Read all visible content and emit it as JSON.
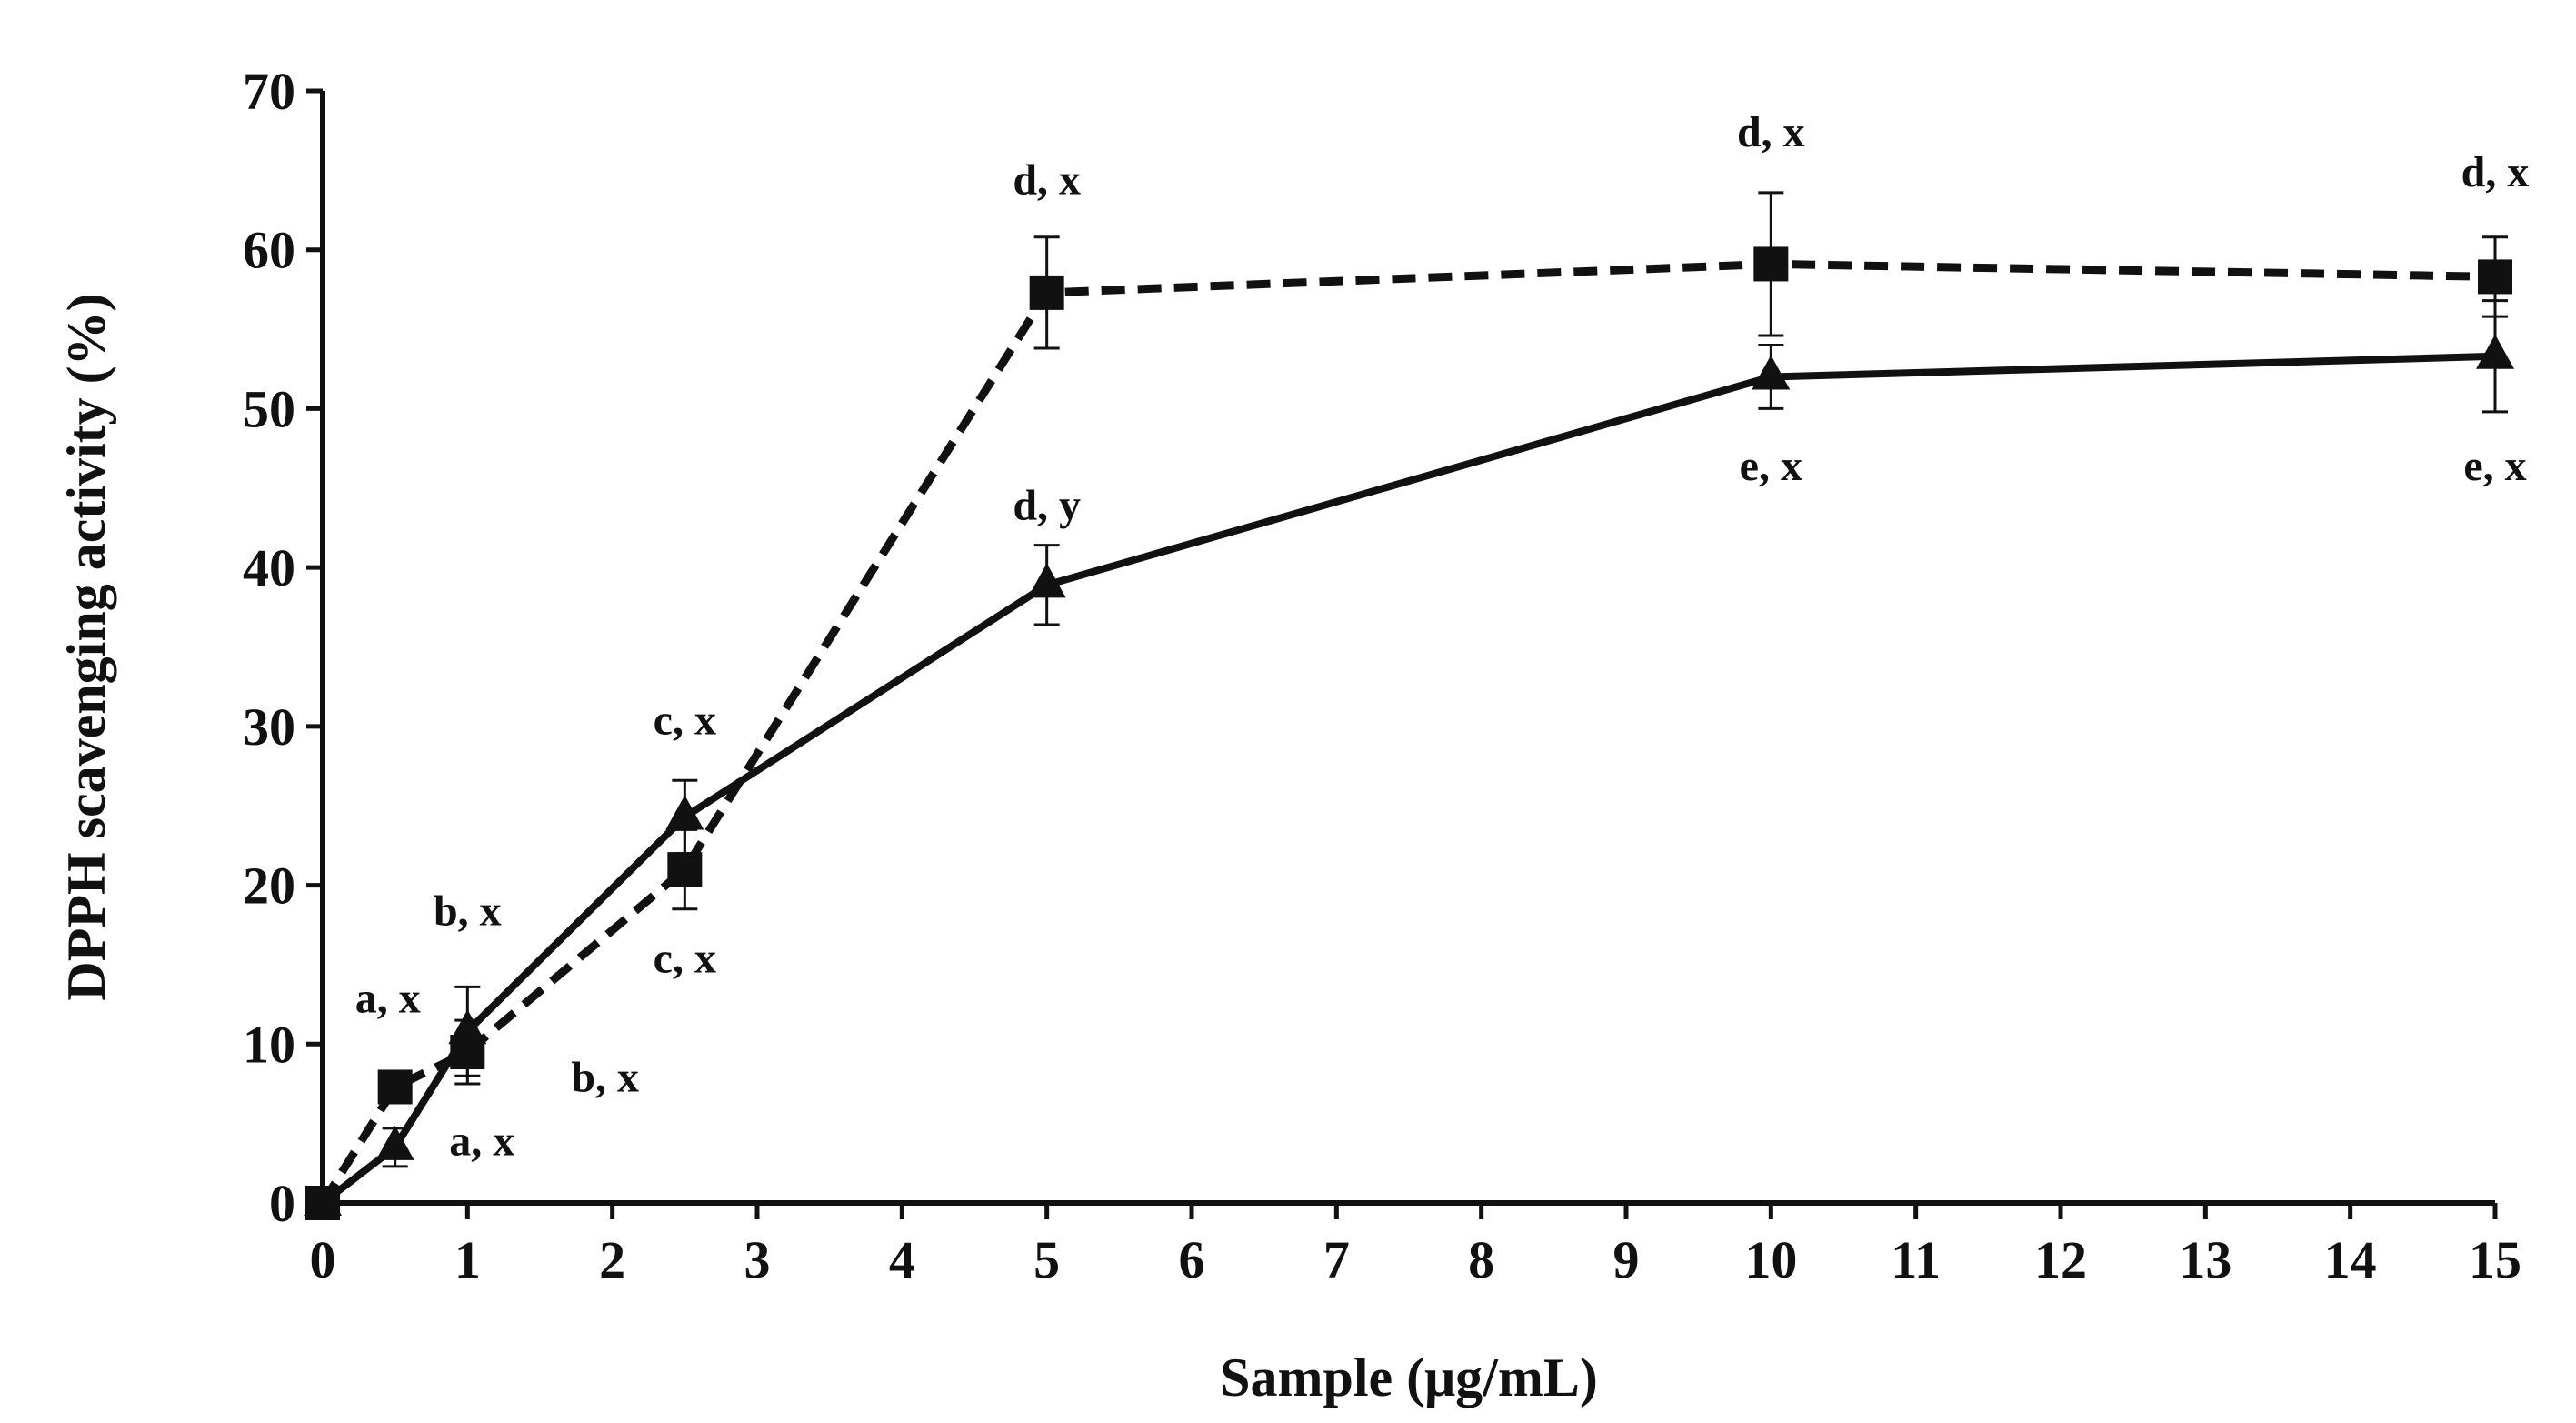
{
  "chart_data": {
    "type": "line",
    "title": "",
    "xlabel": "Sample (μg/mL)",
    "ylabel": "DPPH scavenging activity (%)",
    "xlim": [
      0,
      15
    ],
    "ylim": [
      0,
      70
    ],
    "xticks": [
      0,
      1,
      2,
      3,
      4,
      5,
      6,
      7,
      8,
      9,
      10,
      11,
      12,
      13,
      14,
      15
    ],
    "yticks": [
      0,
      10,
      20,
      30,
      40,
      50,
      60,
      70
    ],
    "grid": false,
    "legend": "none",
    "series": [
      {
        "name": "square-dashed",
        "marker": "square",
        "line": "dashed",
        "x": [
          0,
          0.5,
          1,
          2.5,
          5,
          10,
          15
        ],
        "values": [
          0,
          7.3,
          9.5,
          21.0,
          57.3,
          59.1,
          58.3
        ],
        "errors": [
          0,
          1.0,
          2.0,
          2.5,
          3.5,
          4.5,
          2.5
        ]
      },
      {
        "name": "triangle-solid",
        "marker": "triangle",
        "line": "solid",
        "x": [
          0,
          0.5,
          1,
          2.5,
          5,
          10,
          15
        ],
        "values": [
          0,
          3.5,
          10.8,
          24.3,
          38.9,
          52.0,
          53.3
        ],
        "errors": [
          0,
          1.2,
          2.8,
          2.3,
          2.5,
          2.0,
          3.5
        ]
      }
    ],
    "annotations": [
      {
        "text": "a, x",
        "x": 0.45,
        "y": 12.0
      },
      {
        "text": "a, x",
        "x": 1.1,
        "y": 3.0
      },
      {
        "text": "b, x",
        "x": 1.0,
        "y": 17.5
      },
      {
        "text": "b, x",
        "x": 1.95,
        "y": 7.0
      },
      {
        "text": "c, x",
        "x": 2.5,
        "y": 29.5
      },
      {
        "text": "c, x",
        "x": 2.5,
        "y": 14.5
      },
      {
        "text": "d, x",
        "x": 5.0,
        "y": 63.5
      },
      {
        "text": "d, y",
        "x": 5.0,
        "y": 43.0
      },
      {
        "text": "d, x",
        "x": 10.0,
        "y": 66.5
      },
      {
        "text": "e, x",
        "x": 10.0,
        "y": 45.5
      },
      {
        "text": "d, x",
        "x": 15.0,
        "y": 64.0
      },
      {
        "text": "e, x",
        "x": 15.0,
        "y": 45.5
      }
    ]
  }
}
